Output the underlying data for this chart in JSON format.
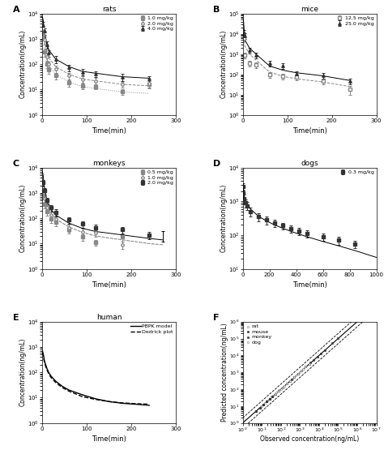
{
  "panel_A": {
    "title": "rats",
    "xlabel": "Time(min)",
    "ylabel": "Concentration(ng/mL)",
    "xlim": [
      0,
      300
    ],
    "ylim": [
      1,
      10000
    ],
    "doses": [
      "1.0 mg/kg",
      "2.0 mg/kg",
      "4.0 mg/kg"
    ],
    "obs_times_1": [
      2,
      5,
      10,
      15,
      30,
      60,
      90,
      120,
      180,
      240
    ],
    "obs_conc_1": [
      1500,
      300,
      100,
      60,
      35,
      18,
      14,
      13,
      8,
      16
    ],
    "obs_err_1": [
      400,
      100,
      30,
      18,
      10,
      5,
      4,
      3,
      2,
      5
    ],
    "obs_times_2": [
      2,
      5,
      10,
      15,
      30,
      60,
      90,
      120,
      180,
      240
    ],
    "obs_conc_2": [
      2500,
      900,
      200,
      100,
      65,
      35,
      25,
      22,
      16,
      17
    ],
    "obs_err_2": [
      700,
      300,
      60,
      30,
      20,
      10,
      8,
      6,
      4,
      5
    ],
    "obs_times_3": [
      2,
      5,
      10,
      15,
      30,
      60,
      90,
      120,
      180,
      240
    ],
    "obs_conc_3": [
      3500,
      2000,
      600,
      280,
      160,
      75,
      50,
      42,
      32,
      26
    ],
    "obs_err_3": [
      1000,
      600,
      180,
      80,
      50,
      22,
      15,
      12,
      10,
      7
    ],
    "pred_times": [
      0.5,
      2,
      5,
      10,
      15,
      30,
      60,
      90,
      120,
      180,
      240
    ],
    "pred_conc_1": [
      1800,
      1400,
      500,
      160,
      90,
      40,
      20,
      13,
      11,
      8,
      7
    ],
    "pred_conc_2": [
      3600,
      2800,
      1000,
      320,
      180,
      80,
      40,
      26,
      22,
      16,
      14
    ],
    "pred_conc_3": [
      7200,
      5600,
      2000,
      640,
      360,
      160,
      80,
      52,
      44,
      32,
      28
    ]
  },
  "panel_B": {
    "title": "mice",
    "xlabel": "Time(min)",
    "ylabel": "Concentration(ng/mL)",
    "xlim": [
      0,
      300
    ],
    "ylim": [
      1,
      100000
    ],
    "doses": [
      "12.5 mg/kg",
      "25.0 mg/kg"
    ],
    "obs_times_1": [
      2,
      5,
      15,
      30,
      60,
      90,
      120,
      180,
      240
    ],
    "obs_conc_1": [
      6000,
      900,
      350,
      300,
      100,
      80,
      75,
      45,
      18
    ],
    "obs_err_1": [
      1800,
      280,
      100,
      90,
      30,
      25,
      22,
      14,
      8
    ],
    "obs_times_2": [
      2,
      5,
      15,
      30,
      60,
      90,
      120,
      180,
      240
    ],
    "obs_conc_2": [
      12000,
      8000,
      1500,
      900,
      350,
      260,
      110,
      90,
      45
    ],
    "obs_err_2": [
      3500,
      2500,
      450,
      280,
      100,
      80,
      35,
      28,
      14
    ],
    "pred_times": [
      0.5,
      2,
      5,
      15,
      30,
      60,
      90,
      120,
      180,
      240
    ],
    "pred_conc_1": [
      30000,
      20000,
      2500,
      1000,
      500,
      130,
      80,
      60,
      42,
      25
    ],
    "pred_conc_2": [
      60000,
      40000,
      5000,
      2000,
      1000,
      260,
      160,
      120,
      84,
      50
    ]
  },
  "panel_C": {
    "title": "monkeys",
    "xlabel": "Time(min)",
    "ylabel": "Concentration(ng/mL)",
    "xlim": [
      0,
      300
    ],
    "ylim": [
      1,
      10000
    ],
    "doses": [
      "0.5 mg/kg",
      "1.0 mg/kg",
      "2.0 mg/kg"
    ],
    "obs_times_1": [
      2,
      5,
      10,
      20,
      30,
      60,
      90,
      120,
      180
    ],
    "obs_conc_1": [
      800,
      350,
      180,
      95,
      70,
      35,
      18,
      11,
      18
    ],
    "obs_err_1": [
      240,
      100,
      55,
      28,
      22,
      10,
      5,
      3,
      6
    ],
    "obs_times_2": [
      2,
      5,
      10,
      20,
      30,
      60,
      90,
      120,
      180
    ],
    "obs_conc_2": [
      1200,
      600,
      260,
      140,
      95,
      42,
      30,
      26,
      9
    ],
    "obs_err_2": [
      360,
      180,
      78,
      42,
      28,
      13,
      9,
      8,
      3
    ],
    "obs_times_3": [
      2,
      5,
      10,
      20,
      30,
      60,
      90,
      120,
      180,
      240
    ],
    "obs_conc_3": [
      2500,
      1200,
      500,
      260,
      170,
      85,
      60,
      42,
      35,
      22
    ],
    "obs_err_3": [
      750,
      360,
      150,
      78,
      52,
      26,
      18,
      13,
      10,
      7
    ],
    "err_time_extra": 270,
    "err_val_extra": 22,
    "err_extra": 10,
    "pred_times": [
      0.5,
      2,
      5,
      10,
      20,
      30,
      60,
      90,
      120,
      180,
      240,
      270
    ],
    "pred_conc_1": [
      7000,
      4000,
      1200,
      400,
      160,
      95,
      45,
      28,
      20,
      14,
      10,
      9
    ],
    "pred_conc_2": [
      7000,
      4000,
      1200,
      400,
      160,
      95,
      45,
      28,
      20,
      14,
      10,
      9
    ],
    "pred_conc_3": [
      7000,
      4800,
      1600,
      560,
      220,
      135,
      64,
      40,
      30,
      22,
      16,
      14
    ]
  },
  "panel_D": {
    "title": "dogs",
    "xlabel": "Time(min)",
    "ylabel": "Concentration(ng/mL)",
    "xlim": [
      0,
      1000
    ],
    "ylim": [
      10,
      10000
    ],
    "doses": [
      "0.3 mg/kg"
    ],
    "obs_times_1": [
      2,
      5,
      10,
      20,
      30,
      60,
      120,
      180,
      240,
      300,
      360,
      420,
      480,
      600,
      720,
      840
    ],
    "obs_conc_1": [
      2800,
      1800,
      1200,
      900,
      750,
      500,
      350,
      280,
      230,
      190,
      155,
      130,
      110,
      90,
      70,
      55
    ],
    "obs_err_1": [
      700,
      450,
      350,
      250,
      200,
      140,
      90,
      70,
      55,
      45,
      38,
      32,
      27,
      22,
      18,
      14
    ],
    "pred_times": [
      1,
      2,
      5,
      10,
      20,
      30,
      60,
      120,
      180,
      240,
      300,
      360,
      480,
      600,
      720,
      840,
      1000
    ],
    "pred_conc_1": [
      3200,
      2800,
      2000,
      1500,
      1100,
      900,
      580,
      360,
      260,
      200,
      160,
      130,
      90,
      65,
      48,
      35,
      22
    ]
  },
  "panel_E": {
    "title": "human",
    "xlabel": "Time(min)",
    "ylabel": "Concentration(ng/mL)",
    "xlim": [
      0,
      300
    ],
    "ylim": [
      1,
      10000
    ],
    "legend": [
      "PBPK model",
      "Dedrick plot"
    ],
    "pbpk_times": [
      0.5,
      2,
      5,
      10,
      15,
      20,
      30,
      45,
      60,
      90,
      120,
      150,
      180,
      210,
      240
    ],
    "pbpk_conc": [
      700,
      550,
      280,
      150,
      95,
      70,
      45,
      28,
      20,
      13,
      9,
      7,
      6,
      5.5,
      5
    ],
    "dedrick_times": [
      0.5,
      2,
      5,
      10,
      15,
      20,
      30,
      45,
      60,
      90,
      120,
      150,
      180,
      210,
      240
    ],
    "dedrick_conc": [
      600,
      480,
      240,
      130,
      85,
      62,
      40,
      25,
      18,
      11,
      8.5,
      7,
      6.2,
      5.8,
      5.5
    ]
  },
  "panel_F": {
    "xlabel": "Observed concentration(ng/mL)",
    "ylabel": "Predicted concentration(ng/mL)",
    "xlim_pow": [
      0,
      7
    ],
    "ylim_pow": [
      0,
      6
    ],
    "species": [
      "rat",
      "mouse",
      "monkey",
      "dog"
    ],
    "markers": [
      "s",
      "s",
      "s",
      "s"
    ],
    "rat_obs": [
      5,
      8,
      10,
      12,
      15,
      18,
      20,
      25,
      30,
      40,
      50,
      60,
      80,
      100,
      150,
      200,
      300,
      400,
      600,
      1000,
      1500,
      2000,
      3000
    ],
    "rat_pred": [
      5,
      8,
      10,
      12,
      16,
      19,
      21,
      26,
      32,
      42,
      52,
      62,
      85,
      105,
      158,
      210,
      315,
      420,
      630,
      1050,
      1570,
      2100,
      3150
    ],
    "mouse_obs": [
      5,
      8,
      12,
      18,
      25,
      35,
      50,
      80,
      120,
      200,
      350,
      500,
      800,
      1200,
      2000,
      3500,
      5000,
      8000,
      12000,
      20000,
      50000,
      100000
    ],
    "mouse_pred": [
      5,
      8,
      12,
      19,
      26,
      37,
      53,
      84,
      126,
      210,
      368,
      525,
      840,
      1260,
      2100,
      3680,
      5250,
      8400,
      12600,
      21000,
      52500,
      105000
    ],
    "monkey_obs": [
      5,
      8,
      12,
      18,
      25,
      35,
      50,
      80,
      120,
      200,
      300,
      500,
      800,
      1200,
      2000,
      3000
    ],
    "monkey_pred": [
      5,
      8,
      12,
      19,
      26,
      37,
      53,
      84,
      126,
      210,
      315,
      525,
      840,
      1260,
      2100,
      3150
    ],
    "dog_obs": [
      50,
      80,
      120,
      200,
      300,
      500,
      800,
      1200,
      2000,
      3000
    ],
    "dog_pred": [
      52,
      84,
      126,
      210,
      315,
      525,
      840,
      1260,
      2100,
      3150
    ]
  }
}
